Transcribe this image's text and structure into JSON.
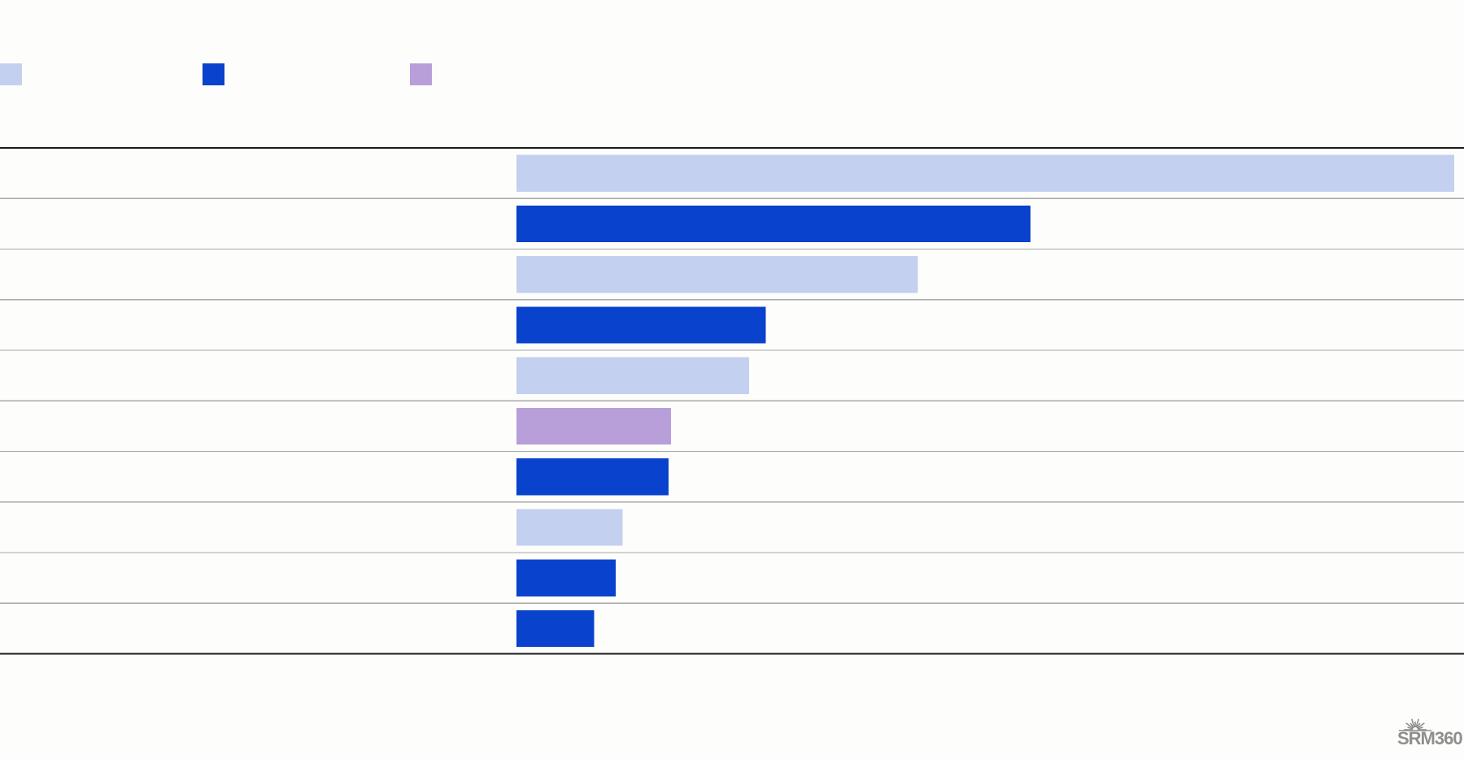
{
  "chart_data": {
    "type": "bar",
    "orientation": "horizontal",
    "title": "",
    "categories": [
      "",
      "",
      "",
      "",
      "",
      "",
      "",
      "",
      "",
      ""
    ],
    "values": [
      100,
      54.8,
      42.8,
      26.6,
      24.8,
      16.5,
      16.2,
      11.3,
      10.6,
      8.3
    ],
    "value_groups": [
      0,
      1,
      0,
      1,
      0,
      2,
      1,
      0,
      1,
      1
    ],
    "groups": [
      {
        "name": "",
        "color": "#c3d0f0"
      },
      {
        "name": "",
        "color": "#0942cc"
      },
      {
        "name": "",
        "color": "#b89fd9"
      }
    ],
    "xlim": [
      0,
      100
    ],
    "grid": true,
    "legend_position": "top-left",
    "xlabel": "",
    "ylabel": ""
  },
  "branding": {
    "logo_icon": "sunburst-icon",
    "logo_text": "SRM360",
    "logo_color": "#8f8f8f"
  },
  "colors": {
    "background": "#fdfdfb",
    "row_rule": "#a8a8a8",
    "axis_rule": "#1a1a1a"
  }
}
